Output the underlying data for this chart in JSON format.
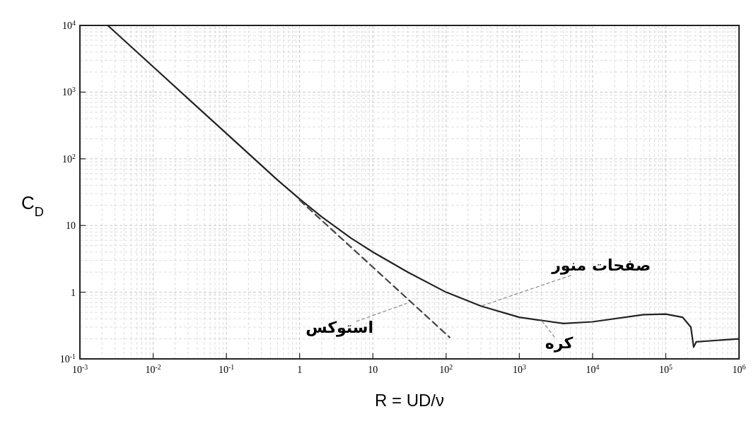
{
  "chart_data": {
    "type": "line",
    "xlabel": "R = UD/ν",
    "ylabel": "C$_{D}$",
    "log": "xy",
    "grid": true,
    "marker": "none",
    "xlim": [
      0.001,
      1000000
    ],
    "ylim": [
      0.1,
      10000
    ],
    "xticks": [
      {
        "value": 0.001,
        "label": "10$^{-3}$"
      },
      {
        "value": 0.01,
        "label": "10$^{-2}$"
      },
      {
        "value": 0.1,
        "label": "10$^{-1}$"
      },
      1,
      10,
      {
        "value": 100,
        "label": "10$^{2}$"
      },
      {
        "value": 1000,
        "label": "10$^{3}$"
      },
      {
        "value": 10000,
        "label": "10$^{4}$"
      },
      {
        "value": 100000,
        "label": "10$^{5}$"
      },
      {
        "value": 1000000,
        "label": "10$^{6}$"
      }
    ],
    "yticks": [
      {
        "value": 0.1,
        "label": "10$^{-1}$"
      },
      1,
      10,
      {
        "value": 100,
        "label": "10$^{2}$"
      },
      {
        "value": 1000,
        "label": "10$^{3}$"
      },
      {
        "value": 10000,
        "label": "10$^{4}$"
      }
    ],
    "series": [
      {
        "color": "#222222",
        "line_style": "solid",
        "x": [
          0.0024,
          0.01,
          0.1,
          0.5,
          1,
          2,
          5,
          10,
          30,
          100,
          300,
          1000,
          4000,
          10000,
          50000,
          100000,
          170000,
          220000,
          240000,
          260000,
          1000000
        ],
        "values": [
          10000,
          2400,
          240,
          48,
          25,
          13.5,
          6.5,
          4.0,
          2.0,
          1.0,
          0.62,
          0.42,
          0.34,
          0.36,
          0.46,
          0.47,
          0.42,
          0.3,
          0.15,
          0.18,
          0.2
        ]
      },
      {
        "color": "#444444",
        "line_style": "dashed",
        "x": [
          1,
          112
        ],
        "values": [
          24,
          0.21
        ]
      }
    ],
    "annotations": [
      {
        "text": "صفحات منور",
        "x": 300,
        "y": 0.62
      },
      {
        "text": "استوکس",
        "x": 29,
        "y": 0.68
      },
      {
        "text": "کره",
        "x": 2000,
        "y": 0.38
      }
    ]
  }
}
